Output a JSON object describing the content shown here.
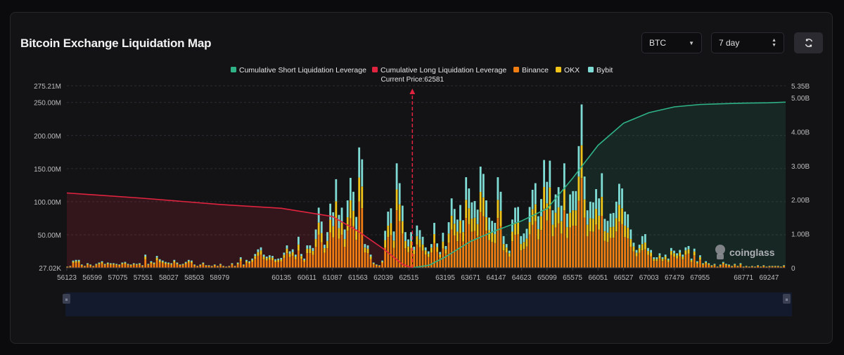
{
  "header": {
    "title": "Bitcoin Exchange Liquidation Map",
    "coin_select": "BTC",
    "range_select": "7 day"
  },
  "colors": {
    "short": "#2fb386",
    "long": "#e0243f",
    "binance": "#f07e12",
    "okx": "#f0c419",
    "bybit": "#7fdcd4",
    "current_price": "#e0243f"
  },
  "icons": {
    "refresh": "refresh-icon",
    "coin_chevron": "chevron-down-icon",
    "range_stepper": "updown-chevron-icon",
    "watermark": "coinglass-logo-icon"
  },
  "watermark": "coinglass",
  "chart_data": {
    "type": "bar",
    "title": "",
    "legend": [
      "Cumulative Short Liquidation Leverage",
      "Cumulative Long Liquidation Leverage",
      "Binance",
      "OKX",
      "Bybit"
    ],
    "legend_position": "top-center",
    "annotation": "Current Price:62581",
    "current_price": 62581,
    "xlim": [
      56123,
      69557
    ],
    "x_ticks": [
      56123,
      56599,
      57075,
      57551,
      58027,
      58503,
      58979,
      60135,
      60611,
      61087,
      61563,
      62039,
      62515,
      63195,
      63671,
      64147,
      64623,
      65099,
      65575,
      66051,
      66527,
      67003,
      67479,
      67955,
      68771,
      69247
    ],
    "y_left": {
      "ticks": [
        "27.02K",
        "50.00M",
        "100.00M",
        "150.00M",
        "200.00M",
        "250.00M",
        "275.21M"
      ],
      "tick_values": [
        0.027,
        50,
        100,
        150,
        200,
        250,
        275.21
      ],
      "range": [
        0.027,
        275.21
      ],
      "unit": "M"
    },
    "y_right": {
      "ticks": [
        "0",
        "1.00B",
        "2.00B",
        "3.00B",
        "4.00B",
        "5.00B",
        "5.35B"
      ],
      "tick_values": [
        0,
        1,
        2,
        3,
        4,
        5,
        5.35
      ],
      "range": [
        0,
        5.35
      ],
      "unit": "B"
    },
    "grid": true,
    "bars": {
      "x": [
        56133,
        56187,
        56241,
        56295,
        56349,
        56403,
        56457,
        56511,
        56565,
        56619,
        56673,
        56727,
        56781,
        56835,
        56889,
        56943,
        56997,
        57051,
        57105,
        57159,
        57213,
        57267,
        57321,
        57375,
        57429,
        57483,
        57537,
        57591,
        57645,
        57699,
        57753,
        57807,
        57861,
        57915,
        57969,
        58023,
        58077,
        58131,
        58185,
        58239,
        58293,
        58347,
        58401,
        58455,
        58509,
        58563,
        58617,
        58671,
        58725,
        58779,
        58833,
        58887,
        58941,
        58995,
        59049,
        59103,
        59157,
        59211,
        59265,
        59319,
        59373,
        59427,
        59481,
        59535,
        59589,
        59643,
        59697,
        59751,
        59805,
        59859,
        59913,
        59967,
        60021,
        60075,
        60129,
        60183,
        60237,
        60291,
        60345,
        60399,
        60453,
        60507,
        60561,
        60615,
        60669,
        60723,
        60777,
        60831,
        60885,
        60939,
        60993,
        61047,
        61101,
        61155,
        61209,
        61263,
        61317,
        61371,
        61425,
        61479,
        61533,
        61587,
        61641,
        61695,
        61749,
        61803,
        61857,
        61911,
        61965,
        62019,
        62073,
        62127,
        62181,
        62235,
        62289,
        62343,
        62397,
        62451,
        62505,
        62559,
        62613,
        62667,
        62721,
        62775,
        62829,
        62883,
        62937,
        62991,
        63045,
        63099,
        63153,
        63207,
        63261,
        63315,
        63369,
        63423,
        63477,
        63531,
        63585,
        63639,
        63693,
        63747,
        63801,
        63855,
        63909,
        63963,
        64017,
        64071,
        64125,
        64179,
        64233,
        64287,
        64341,
        64395,
        64449,
        64503,
        64557,
        64611,
        64665,
        64719,
        64773,
        64827,
        64881,
        64935,
        64989,
        65043,
        65097,
        65151,
        65205,
        65259,
        65313,
        65367,
        65421,
        65475,
        65529,
        65583,
        65637,
        65691,
        65745,
        65799,
        65853,
        65907,
        65961,
        66015,
        66069,
        66123,
        66177,
        66231,
        66285,
        66339,
        66393,
        66447,
        66501,
        66555,
        66609,
        66663,
        66717,
        66771,
        66825,
        66879,
        66933,
        66987,
        67041,
        67095,
        67149,
        67203,
        67257,
        67311,
        67365,
        67419,
        67473,
        67527,
        67581,
        67635,
        67689,
        67743,
        67797,
        67851,
        67905,
        67959,
        68013,
        68067,
        68121,
        68175,
        68229,
        68283,
        68337,
        68391,
        68445,
        68499,
        68553,
        68607,
        68661,
        68715,
        68769,
        68823,
        68877,
        68931,
        68985,
        69039,
        69093,
        69147,
        69201,
        69255,
        69309,
        69363,
        69417,
        69471,
        69525
      ],
      "total": [
        2,
        3,
        11,
        12,
        12,
        5,
        3,
        7,
        5,
        3,
        6,
        8,
        10,
        6,
        8,
        7,
        7,
        6,
        5,
        8,
        9,
        6,
        5,
        7,
        6,
        7,
        4,
        20,
        6,
        10,
        8,
        18,
        13,
        11,
        9,
        8,
        7,
        12,
        8,
        5,
        6,
        9,
        12,
        11,
        5,
        3,
        5,
        8,
        4,
        4,
        3,
        5,
        3,
        6,
        3,
        2,
        3,
        7,
        3,
        8,
        16,
        5,
        12,
        10,
        14,
        21,
        28,
        31,
        20,
        17,
        19,
        18,
        13,
        14,
        15,
        23,
        34,
        25,
        28,
        20,
        47,
        21,
        14,
        34,
        34,
        30,
        58,
        91,
        70,
        35,
        54,
        97,
        84,
        134,
        80,
        91,
        58,
        102,
        136,
        115,
        77,
        182,
        164,
        36,
        34,
        20,
        8,
        5,
        4,
        11,
        56,
        85,
        90,
        55,
        158,
        128,
        94,
        54,
        43,
        54,
        32,
        64,
        57,
        47,
        31,
        25,
        36,
        68,
        37,
        24,
        53,
        33,
        69,
        105,
        89,
        73,
        95,
        72,
        137,
        120,
        99,
        101,
        88,
        153,
        142,
        102,
        76,
        71,
        68,
        137,
        115,
        48,
        36,
        26,
        73,
        91,
        92,
        48,
        52,
        59,
        92,
        118,
        128,
        78,
        104,
        163,
        130,
        162,
        87,
        111,
        122,
        94,
        158,
        82,
        111,
        116,
        116,
        184,
        247,
        138,
        87,
        100,
        99,
        119,
        105,
        143,
        74,
        71,
        82,
        83,
        100,
        127,
        120,
        85,
        81,
        58,
        38,
        27,
        35,
        48,
        51,
        30,
        27,
        16,
        16,
        22,
        16,
        20,
        14,
        30,
        26,
        22,
        27,
        20,
        31,
        33,
        14,
        29,
        10,
        19,
        7,
        10,
        7,
        4,
        6,
        2,
        5,
        9,
        6,
        5,
        3,
        6,
        3,
        7,
        2,
        3,
        2,
        3,
        2,
        4,
        2,
        4,
        2,
        3,
        3,
        3,
        3,
        2,
        4
      ],
      "cumulative_long": {
        "x": [
          56123,
          57500,
          59000,
          60135,
          61087,
          61563,
          62039,
          62400,
          62581
        ],
        "values": [
          2.2,
          2.05,
          1.86,
          1.75,
          1.51,
          1.08,
          0.56,
          0.1,
          0.0
        ]
      },
      "cumulative_short": {
        "x": [
          62581,
          62900,
          63195,
          63671,
          64147,
          64623,
          65099,
          65575,
          66051,
          66527,
          67003,
          67479,
          67955,
          68771,
          69247,
          69557
        ],
        "values": [
          0.0,
          0.08,
          0.32,
          0.78,
          1.1,
          1.38,
          1.74,
          2.63,
          3.6,
          4.25,
          4.56,
          4.73,
          4.8,
          4.84,
          4.85,
          4.87
        ]
      }
    }
  }
}
